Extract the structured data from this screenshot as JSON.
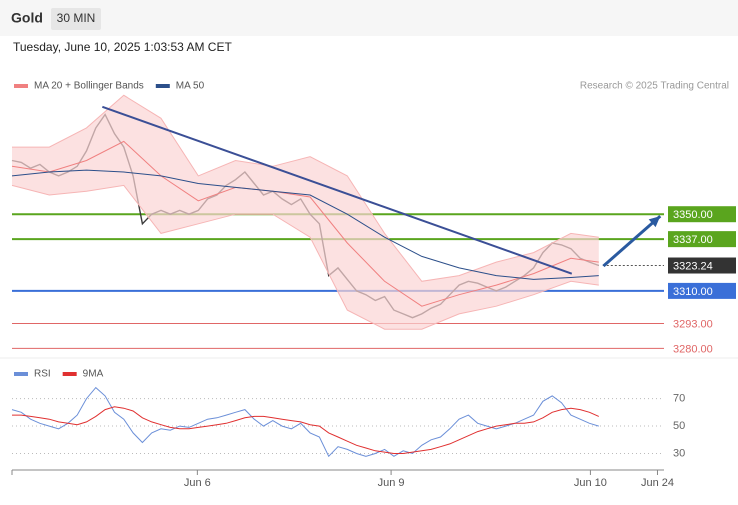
{
  "header": {
    "title": "Gold",
    "interval": "30 MIN",
    "timestamp": "Tuesday, June 10, 2025 1:03:53 AM CET"
  },
  "credit": "Research © 2025 Trading Central",
  "chart_data": [
    {
      "type": "line",
      "xlim": [
        0,
        70
      ],
      "ylim": [
        3275,
        3420
      ],
      "series": [
        {
          "color": "#3a3a3a",
          "values": [
            3378,
            3377,
            3374,
            3376,
            3372,
            3370,
            3372,
            3375,
            3383,
            3395,
            3402,
            3392,
            3385,
            3370,
            3345,
            3350,
            3352,
            3350,
            3352,
            3350,
            3352,
            3358,
            3360,
            3365,
            3368,
            3372,
            3366,
            3360,
            3362,
            3358,
            3355,
            3358,
            3350,
            3345,
            3318,
            3322,
            3316,
            3310,
            3308,
            3305,
            3307,
            3300,
            3298,
            3296,
            3298,
            3301,
            3303,
            3308,
            3313,
            3315,
            3314,
            3312,
            3310,
            3312,
            3315,
            3318,
            3322,
            3330,
            3335,
            3334,
            3332,
            3327,
            3325,
            3323.24
          ]
        },
        {
          "name": "MA 20 + Bollinger Bands",
          "color": "#f08080",
          "x": [
            0,
            4,
            8,
            12,
            16,
            20,
            24,
            28,
            32,
            36,
            40,
            44,
            48,
            52,
            56,
            60,
            63
          ],
          "values": [
            3375,
            3372,
            3378,
            3388,
            3370,
            3357,
            3364,
            3362,
            3359,
            3335,
            3315,
            3302,
            3308,
            3313,
            3319,
            3327,
            3325
          ],
          "upper": [
            3385,
            3385,
            3395,
            3412,
            3400,
            3370,
            3378,
            3375,
            3380,
            3370,
            3340,
            3315,
            3318,
            3325,
            3330,
            3340,
            3338
          ],
          "lower": [
            3365,
            3360,
            3362,
            3365,
            3340,
            3345,
            3350,
            3350,
            3338,
            3300,
            3290,
            3290,
            3298,
            3302,
            3308,
            3315,
            3313
          ]
        },
        {
          "name": "MA 50",
          "color": "#2c4f8a",
          "x": [
            0,
            4,
            8,
            12,
            16,
            20,
            24,
            28,
            32,
            36,
            40,
            44,
            48,
            52,
            56,
            60,
            63
          ],
          "values": [
            3370,
            3372,
            3373,
            3372,
            3370,
            3366,
            3364,
            3362,
            3360,
            3350,
            3338,
            3328,
            3322,
            3318,
            3316,
            3317,
            3318
          ]
        }
      ],
      "levels": [
        {
          "value": 3350,
          "label": "3350.00",
          "color": "#5aa51e"
        },
        {
          "value": 3337,
          "label": "3337.00",
          "color": "#5aa51e"
        },
        {
          "value": 3323.24,
          "label": "3323.24",
          "color": "#333333"
        },
        {
          "value": 3310,
          "label": "3310.00",
          "color": "#3a6fd8"
        },
        {
          "value": 3293,
          "label": "3293.00",
          "color": "#e06666"
        },
        {
          "value": 3280,
          "label": "3280.00",
          "color": "#e06666"
        }
      ],
      "trendline": {
        "x": [
          9.7,
          60.1
        ],
        "values": [
          3406,
          3319
        ],
        "color": "#3b4f96"
      },
      "arrow": {
        "x": [
          63.5,
          69.6
        ],
        "values": [
          3323,
          3349
        ],
        "color": "#2a5aa0"
      }
    },
    {
      "type": "line",
      "xlim": [
        0,
        70
      ],
      "ylim": [
        18,
        85
      ],
      "yticks": [
        30,
        50,
        70
      ],
      "xticks": [
        {
          "value": 19.9,
          "label": "Jun 6"
        },
        {
          "value": 40.7,
          "label": "Jun 9"
        },
        {
          "value": 62.1,
          "label": "Jun 10"
        },
        {
          "value": 69.3,
          "label": "Jun 24"
        }
      ],
      "series": [
        {
          "name": "RSI",
          "color": "#6b8fd8",
          "values": [
            62,
            60,
            55,
            52,
            50,
            48,
            52,
            58,
            70,
            78,
            72,
            60,
            55,
            45,
            38,
            45,
            48,
            47,
            50,
            49,
            52,
            55,
            56,
            58,
            60,
            62,
            55,
            50,
            54,
            50,
            48,
            52,
            45,
            42,
            28,
            35,
            33,
            30,
            28,
            30,
            33,
            28,
            32,
            30,
            36,
            40,
            42,
            48,
            55,
            58,
            52,
            50,
            48,
            50,
            52,
            55,
            58,
            68,
            72,
            67,
            58,
            55,
            52,
            50
          ]
        },
        {
          "name": "9MA",
          "color": "#e03030",
          "values": [
            58,
            58,
            57,
            56,
            55,
            53,
            52,
            51,
            53,
            57,
            62,
            64,
            63,
            61,
            56,
            53,
            51,
            49,
            48,
            48,
            49,
            50,
            51,
            52,
            54,
            56,
            57,
            57,
            56,
            55,
            54,
            53,
            51,
            50,
            45,
            42,
            39,
            36,
            34,
            32,
            31,
            30,
            30,
            31,
            32,
            33,
            35,
            37,
            40,
            43,
            46,
            48,
            50,
            51,
            52,
            52,
            53,
            56,
            60,
            62,
            63,
            62,
            60,
            57
          ]
        }
      ]
    }
  ]
}
